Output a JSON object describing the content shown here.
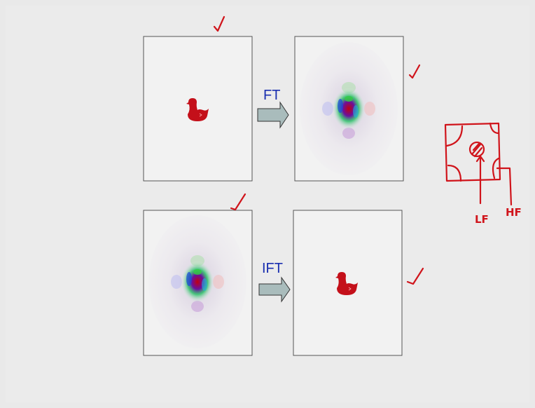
{
  "arrows": [
    {
      "label": "FT"
    },
    {
      "label": "IFT"
    }
  ],
  "sketch": {
    "low": "LF",
    "high": "HF"
  }
}
